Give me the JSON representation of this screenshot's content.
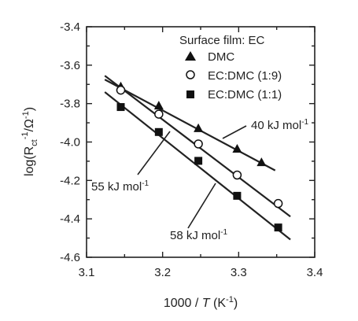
{
  "chart_data": {
    "type": "scatter",
    "xlabel_prefix": "1000 / ",
    "xlabel_var": "T",
    "xlabel_unit": " (K",
    "xlabel_unit_sup": "-1",
    "xlabel_close": ")",
    "ylabel_main": "log(R",
    "ylabel_sub": "ct",
    "ylabel_sup1": "-1",
    "ylabel_mid": "/Ω",
    "ylabel_sup2": "-1",
    "ylabel_close": ")",
    "xlim": [
      3.1,
      3.4
    ],
    "ylim": [
      -4.6,
      -3.4
    ],
    "xticks": [
      "3.1",
      "3.2",
      "3.3",
      "3.4"
    ],
    "yticks": [
      "-3.4",
      "-3.6",
      "-3.8",
      "-4.0",
      "-4.2",
      "-4.4",
      "-4.6"
    ],
    "legend_title": "Surface film: EC",
    "legend_position": "top-right",
    "series": [
      {
        "name": "DMC",
        "marker": "filled-triangle",
        "x": [
          3.145,
          3.195,
          3.247,
          3.298,
          3.33
        ],
        "y": [
          -3.71,
          -3.81,
          -3.928,
          -4.035,
          -4.105
        ],
        "fit": {
          "x": [
            3.124,
            3.348
          ],
          "y": [
            -3.675,
            -4.148
          ]
        }
      },
      {
        "name": "EC:DMC (1:9)",
        "marker": "open-circle",
        "x": [
          3.145,
          3.195,
          3.247,
          3.298,
          3.352
        ],
        "y": [
          -3.73,
          -3.855,
          -4.01,
          -4.172,
          -4.32
        ],
        "fit": {
          "x": [
            3.124,
            3.368
          ],
          "y": [
            -3.655,
            -4.388
          ]
        }
      },
      {
        "name": "EC:DMC (1:1)",
        "marker": "filled-square",
        "x": [
          3.145,
          3.195,
          3.247,
          3.298,
          3.352
        ],
        "y": [
          -3.818,
          -3.948,
          -4.098,
          -4.28,
          -4.445
        ],
        "fit": {
          "x": [
            3.124,
            3.368
          ],
          "y": [
            -3.74,
            -4.508
          ]
        }
      }
    ],
    "annotations": [
      {
        "text": "40 kJ mol",
        "sup": "-1"
      },
      {
        "text": "55 kJ mol",
        "sup": "-1"
      },
      {
        "text": "58 kJ mol",
        "sup": "-1"
      }
    ]
  }
}
